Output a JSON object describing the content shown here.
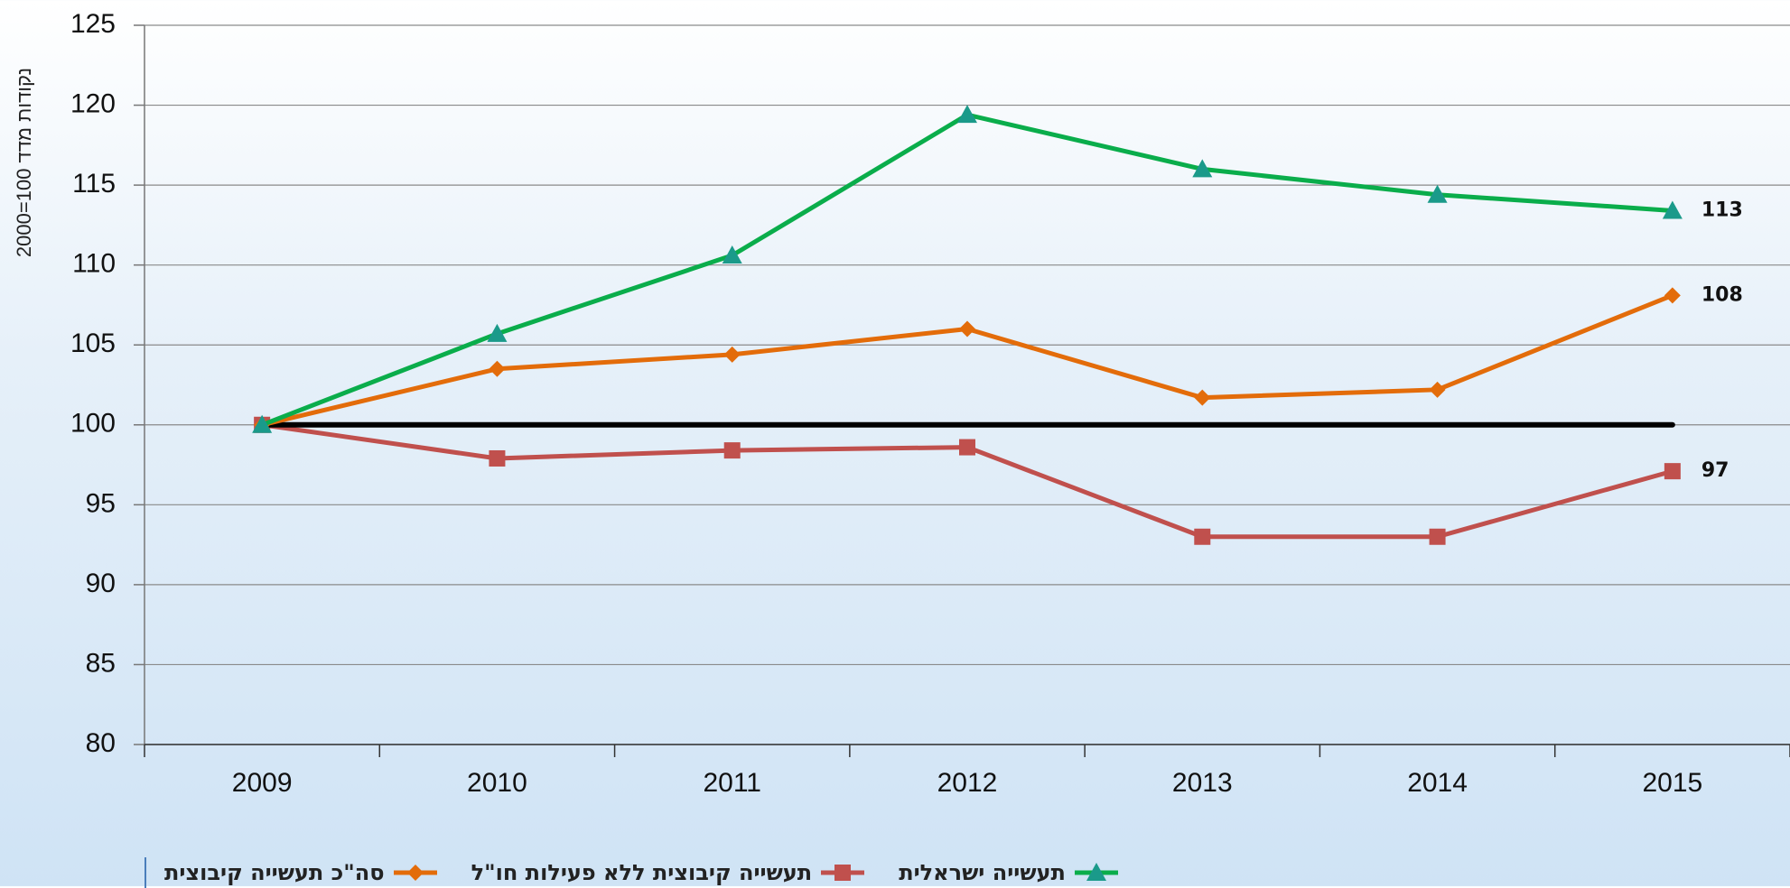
{
  "chart_data": {
    "type": "line",
    "y_label": "נקודות מדד 100=2000",
    "categories": [
      "2009",
      "2010",
      "2011",
      "2012",
      "2013",
      "2014",
      "2015"
    ],
    "series": [
      {
        "name": "תעשייה ישראלית",
        "color": "#0aad4b",
        "marker": "triangle",
        "marker_color": "#1a9a8a",
        "values": [
          100,
          105.7,
          110.6,
          119.4,
          116,
          114.4,
          113.4
        ],
        "value_labels": [
          null,
          null,
          null,
          null,
          null,
          null,
          "113"
        ]
      },
      {
        "name": "תעשייה קיבוצית ללא פעילות חו\"ל",
        "color": "#c0504d",
        "marker": "square",
        "marker_color": "#c0504d",
        "values": [
          100,
          97.9,
          98.4,
          98.6,
          93,
          93,
          97.1
        ],
        "value_labels": [
          null,
          null,
          null,
          null,
          null,
          null,
          "97"
        ]
      },
      {
        "name": "סה\"כ תעשייה קיבוצית",
        "color": "#e36c0a",
        "marker": "diamond",
        "marker_color": "#e36c0a",
        "values": [
          100,
          103.5,
          104.4,
          106,
          101.7,
          102.2,
          108.1
        ],
        "value_labels": [
          null,
          null,
          null,
          null,
          null,
          null,
          "108"
        ]
      }
    ],
    "reference_line": {
      "value": 100,
      "color": "#000000"
    },
    "ylim": [
      80,
      125
    ],
    "yticks": [
      80,
      85,
      90,
      95,
      100,
      105,
      110,
      115,
      120,
      125
    ],
    "grid": true
  }
}
